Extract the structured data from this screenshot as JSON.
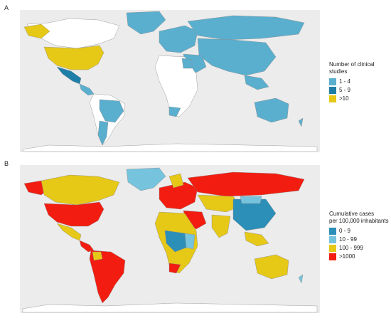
{
  "panels": [
    {
      "label": "A",
      "legend": {
        "title": "Number of clinical studies",
        "items": [
          {
            "label": "1 - 4",
            "color": "#5aafcf"
          },
          {
            "label": "5 - 9",
            "color": "#1f7ea8"
          },
          {
            "label": ">10",
            "color": "#e6c817"
          }
        ]
      }
    },
    {
      "label": "B",
      "legend": {
        "title_line1": "Cumulative cases",
        "title_line2": "per 100,000 inhabitants",
        "items": [
          {
            "label": "0 - 9",
            "color": "#2c8fb8"
          },
          {
            "label": "10 - 99",
            "color": "#76c3de"
          },
          {
            "label": "100 - 999",
            "color": "#e6c817"
          },
          {
            "label": ">1000",
            "color": "#f21d10"
          }
        ]
      }
    }
  ],
  "colors": {
    "ocean": "#ececec",
    "no_data": "#ffffff",
    "border": "#9a9a9a"
  }
}
